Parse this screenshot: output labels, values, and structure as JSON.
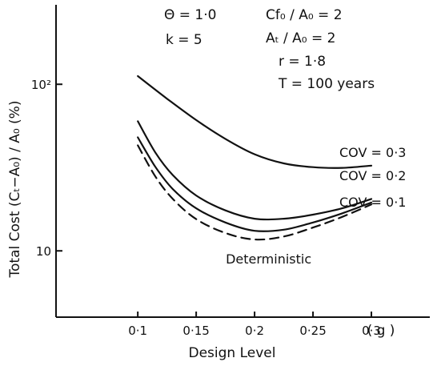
{
  "chart_data": {
    "type": "line",
    "xlabel": "Design Level",
    "ylabel": "Total Cost (Cₜ−A₀) / A₀ (%)",
    "x_unit_label": "( g )",
    "x_ticks": [
      0.1,
      0.15,
      0.2,
      0.25,
      0.3
    ],
    "x_tick_labels": [
      "0·1",
      "0·15",
      "0·2",
      "0·25",
      "0·3"
    ],
    "y_scale": "log",
    "y_ticks": [
      10,
      100
    ],
    "y_tick_labels": [
      "10",
      "10²"
    ],
    "xlim": [
      0.03,
      0.35
    ],
    "ylim": [
      4,
      300
    ],
    "grid": false,
    "annotations": [
      "Θ = 1·0",
      "k = 5",
      "Cf₀ / A₀ = 2",
      "Aₜ / A₀ = 2",
      "r = 1·8",
      "T = 100 years"
    ],
    "series": [
      {
        "name": "COV = 0·3",
        "style": "solid",
        "x": [
          0.1,
          0.125,
          0.15,
          0.175,
          0.2,
          0.225,
          0.25,
          0.275,
          0.3
        ],
        "y": [
          112,
          82,
          61,
          47,
          38,
          33.5,
          31.8,
          31.5,
          32.5
        ]
      },
      {
        "name": "COV = 0·2",
        "style": "solid",
        "x": [
          0.1,
          0.115,
          0.13,
          0.15,
          0.175,
          0.2,
          0.225,
          0.25,
          0.275,
          0.3
        ],
        "y": [
          60,
          39,
          28.5,
          21.5,
          17.5,
          15.6,
          15.6,
          16.5,
          18,
          20.5
        ]
      },
      {
        "name": "COV = 0·1",
        "style": "solid",
        "x": [
          0.1,
          0.115,
          0.13,
          0.15,
          0.175,
          0.2,
          0.225,
          0.25,
          0.275,
          0.3
        ],
        "y": [
          48,
          32,
          23.5,
          18,
          14.8,
          13.2,
          13.4,
          14.8,
          16.8,
          19.5
        ]
      },
      {
        "name": "Deterministic",
        "style": "dashed",
        "x": [
          0.1,
          0.115,
          0.13,
          0.15,
          0.175,
          0.2,
          0.225,
          0.25,
          0.275,
          0.3
        ],
        "y": [
          43,
          28,
          20.5,
          15.5,
          12.8,
          11.7,
          12.2,
          13.8,
          16,
          19
        ]
      }
    ]
  }
}
